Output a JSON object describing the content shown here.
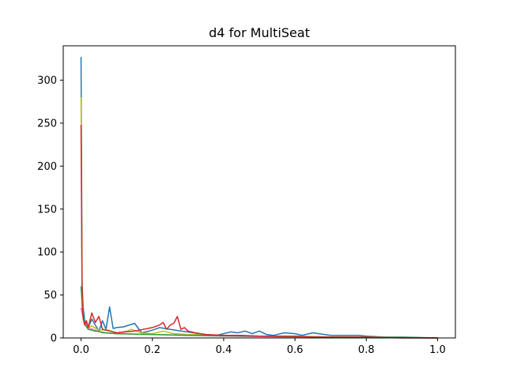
{
  "chart_data": {
    "type": "line",
    "title": "d4 for MultiSeat",
    "xlabel": "",
    "ylabel": "",
    "xlim": [
      -0.05,
      1.05
    ],
    "ylim": [
      0,
      340
    ],
    "x_ticks": [
      0.0,
      0.2,
      0.4,
      0.6,
      0.8,
      1.0
    ],
    "x_tick_labels": [
      "0.0",
      "0.2",
      "0.4",
      "0.6",
      "0.8",
      "1.0"
    ],
    "y_ticks": [
      0,
      50,
      100,
      150,
      200,
      250,
      300
    ],
    "y_tick_labels": [
      "0",
      "50",
      "100",
      "150",
      "200",
      "250",
      "300"
    ],
    "grid": false,
    "legend": "none",
    "series": [
      {
        "color": "#1f77b4",
        "points": [
          [
            0.0,
            327
          ],
          [
            0.003,
            60
          ],
          [
            0.006,
            35
          ],
          [
            0.01,
            20
          ],
          [
            0.015,
            18
          ],
          [
            0.02,
            12
          ],
          [
            0.03,
            22
          ],
          [
            0.04,
            15
          ],
          [
            0.05,
            8
          ],
          [
            0.06,
            20
          ],
          [
            0.07,
            10
          ],
          [
            0.08,
            36
          ],
          [
            0.09,
            11
          ],
          [
            0.1,
            12
          ],
          [
            0.12,
            13
          ],
          [
            0.15,
            17
          ],
          [
            0.17,
            6
          ],
          [
            0.2,
            9
          ],
          [
            0.22,
            12
          ],
          [
            0.25,
            10
          ],
          [
            0.28,
            8
          ],
          [
            0.3,
            7
          ],
          [
            0.33,
            5
          ],
          [
            0.35,
            4
          ],
          [
            0.38,
            3
          ],
          [
            0.42,
            7
          ],
          [
            0.44,
            6
          ],
          [
            0.46,
            8
          ],
          [
            0.48,
            5
          ],
          [
            0.5,
            8
          ],
          [
            0.52,
            4
          ],
          [
            0.54,
            3
          ],
          [
            0.57,
            6
          ],
          [
            0.6,
            5
          ],
          [
            0.62,
            3
          ],
          [
            0.65,
            6
          ],
          [
            0.7,
            3
          ],
          [
            0.74,
            3
          ],
          [
            0.76,
            3
          ],
          [
            0.78,
            3
          ],
          [
            0.8,
            2
          ],
          [
            0.85,
            1
          ],
          [
            0.9,
            1
          ],
          [
            1.0,
            0
          ]
        ]
      },
      {
        "color": "#bcbd22",
        "points": [
          [
            0.0,
            280
          ],
          [
            0.003,
            50
          ],
          [
            0.006,
            22
          ],
          [
            0.01,
            18
          ],
          [
            0.02,
            12
          ],
          [
            0.03,
            14
          ],
          [
            0.05,
            9
          ],
          [
            0.07,
            10
          ],
          [
            0.1,
            6
          ],
          [
            0.13,
            8
          ],
          [
            0.14,
            10
          ],
          [
            0.17,
            6
          ],
          [
            0.2,
            5
          ],
          [
            0.23,
            8
          ],
          [
            0.26,
            5
          ],
          [
            0.3,
            4
          ],
          [
            0.4,
            3
          ],
          [
            0.5,
            2
          ],
          [
            0.6,
            2
          ],
          [
            0.7,
            1
          ],
          [
            0.8,
            1
          ],
          [
            1.0,
            0
          ]
        ]
      },
      {
        "color": "#e377c2",
        "points": [
          [
            0.0,
            35
          ],
          [
            0.005,
            25
          ],
          [
            0.01,
            18
          ],
          [
            0.02,
            12
          ],
          [
            0.04,
            9
          ],
          [
            0.06,
            6
          ],
          [
            0.1,
            5
          ],
          [
            0.2,
            4
          ],
          [
            0.3,
            3
          ],
          [
            0.4,
            2
          ],
          [
            0.6,
            1
          ],
          [
            1.0,
            0
          ]
        ]
      },
      {
        "color": "#2ca02c",
        "points": [
          [
            0.0,
            60
          ],
          [
            0.005,
            28
          ],
          [
            0.01,
            16
          ],
          [
            0.02,
            10
          ],
          [
            0.04,
            8
          ],
          [
            0.07,
            6
          ],
          [
            0.1,
            5
          ],
          [
            0.2,
            4
          ],
          [
            0.3,
            3
          ],
          [
            0.5,
            2
          ],
          [
            1.0,
            0
          ]
        ]
      },
      {
        "color": "#d62728",
        "points": [
          [
            0.0,
            248
          ],
          [
            0.003,
            40
          ],
          [
            0.006,
            22
          ],
          [
            0.01,
            15
          ],
          [
            0.015,
            20
          ],
          [
            0.02,
            12
          ],
          [
            0.03,
            29
          ],
          [
            0.04,
            18
          ],
          [
            0.05,
            25
          ],
          [
            0.06,
            10
          ],
          [
            0.08,
            8
          ],
          [
            0.1,
            6
          ],
          [
            0.15,
            8
          ],
          [
            0.2,
            12
          ],
          [
            0.22,
            15
          ],
          [
            0.23,
            18
          ],
          [
            0.24,
            10
          ],
          [
            0.25,
            15
          ],
          [
            0.26,
            17
          ],
          [
            0.27,
            25
          ],
          [
            0.28,
            10
          ],
          [
            0.29,
            12
          ],
          [
            0.3,
            8
          ],
          [
            0.32,
            6
          ],
          [
            0.35,
            4
          ],
          [
            0.4,
            3
          ],
          [
            0.45,
            3
          ],
          [
            0.5,
            2
          ],
          [
            0.55,
            2
          ],
          [
            0.6,
            2
          ],
          [
            0.65,
            1
          ],
          [
            0.7,
            1
          ],
          [
            0.8,
            1
          ],
          [
            0.9,
            0
          ],
          [
            1.0,
            0
          ]
        ]
      }
    ]
  }
}
